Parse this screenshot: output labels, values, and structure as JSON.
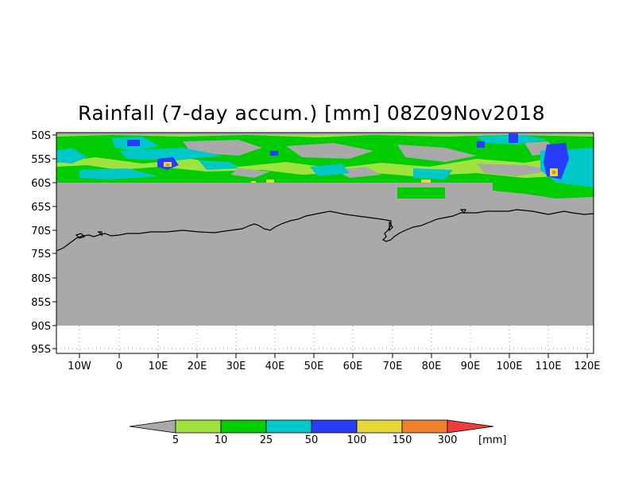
{
  "title": "Rainfall (7-day accum.) [mm] 08Z09Nov2018",
  "map": {
    "lat_labels": [
      "50S",
      "55S",
      "60S",
      "65S",
      "70S",
      "75S",
      "80S",
      "85S",
      "90S",
      "95S"
    ],
    "lon_labels": [
      "10W",
      "0",
      "10E",
      "20E",
      "30E",
      "40E",
      "50E",
      "60E",
      "70E",
      "80E",
      "90E",
      "100E",
      "110E",
      "120E"
    ],
    "lat_values": [
      -50,
      -55,
      -60,
      -65,
      -70,
      -75,
      -80,
      -85,
      -90,
      -95
    ],
    "lon_values": [
      -10,
      0,
      10,
      20,
      30,
      40,
      50,
      60,
      70,
      80,
      90,
      100,
      110,
      120
    ],
    "lon_range": [
      -15,
      121
    ],
    "lat_range": [
      -96,
      -50
    ],
    "no_data_lat_boundary": -60,
    "masked_lat_limit": -90,
    "colors": {
      "below_min": "#a9a9a9",
      "no_data": "#a9a9a9",
      "coastline": "#000000",
      "grid": "#999999"
    }
  },
  "legend": {
    "unit": "[mm]",
    "levels": [
      "5",
      "10",
      "25",
      "50",
      "100",
      "150",
      "300"
    ],
    "colors": [
      "#a9a9a9",
      "#9fe33f",
      "#00cc00",
      "#00c8c8",
      "#2a3cff",
      "#e6d837",
      "#ef8030",
      "#f03c3c"
    ]
  }
}
